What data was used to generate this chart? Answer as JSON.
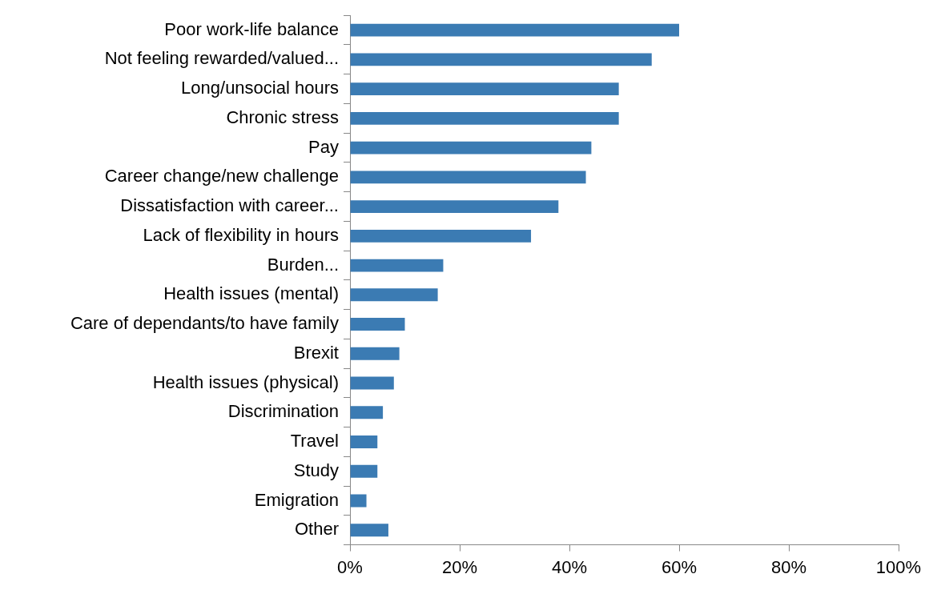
{
  "chart_data": {
    "type": "bar",
    "orientation": "horizontal",
    "categories": [
      "Poor work-life balance",
      "Not feeling rewarded/valued...",
      "Long/unsocial hours",
      "Chronic stress",
      "Pay",
      "Career change/new challenge",
      "Dissatisfaction with career...",
      "Lack of flexibility in hours",
      "Burden...",
      "Health issues (mental)",
      "Care of dependants/to have family",
      "Brexit",
      "Health issues (physical)",
      "Discrimination",
      "Travel",
      "Study",
      "Emigration",
      "Other"
    ],
    "values": [
      60,
      55,
      49,
      49,
      44,
      43,
      38,
      33,
      17,
      16,
      10,
      9,
      8,
      6,
      5,
      5,
      3,
      7
    ],
    "color": "#3b7bb3",
    "xlim": [
      0,
      100
    ],
    "xticks": [
      {
        "value": 0,
        "label": "0%"
      },
      {
        "value": 20,
        "label": "20%"
      },
      {
        "value": 40,
        "label": "40%"
      },
      {
        "value": 60,
        "label": "60%"
      },
      {
        "value": 80,
        "label": "80%"
      },
      {
        "value": 100,
        "label": "100%"
      }
    ]
  }
}
